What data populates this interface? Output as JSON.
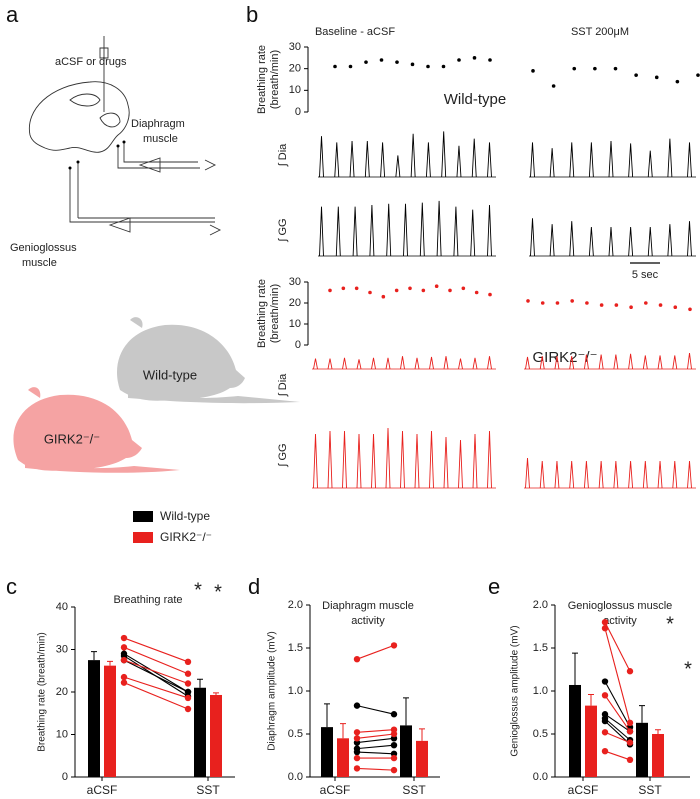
{
  "panels": {
    "a": {
      "label": "a",
      "drug": "aCSF or drugs",
      "diaphragm": [
        "Diaphragm",
        "muscle"
      ],
      "genioglossus": [
        "Genioglossus",
        "muscle"
      ],
      "mouse_wt": "Wild-type",
      "mouse_ko": "GIRK2⁻/⁻"
    },
    "b": {
      "label": "b",
      "headers": [
        "Baseline - aCSF",
        "SST 200μM"
      ],
      "scale_bar": "5 sec"
    },
    "c": {
      "label": "c"
    },
    "d": {
      "label": "d"
    },
    "e": {
      "label": "e"
    },
    "legend": [
      {
        "name": "Wild-type",
        "color": "#000000"
      },
      {
        "name": "GIRK2⁻/⁻",
        "color": "#e8211e"
      }
    ]
  },
  "chart_data": [
    {
      "type": "scatter",
      "ylabel": [
        "Breathing rate",
        "(breath/min)"
      ],
      "annotation": "Wild-type",
      "annotation_color": "#000000",
      "ylim": [
        0,
        30
      ],
      "yticks": [
        0,
        10,
        20,
        30
      ],
      "series": [
        {
          "color": "#000000",
          "values": [
            21,
            21,
            23,
            24,
            23,
            22,
            21,
            21,
            24,
            25,
            24
          ]
        },
        {
          "color": "#000000",
          "values": [
            19,
            12,
            20,
            20,
            20,
            17,
            16,
            14,
            17
          ]
        }
      ]
    },
    {
      "type": "trace",
      "label": "∫ Dia",
      "ylim": [
        0,
        1
      ],
      "series": [
        {
          "color": "#000000",
          "values": [
            0.85,
            0.72,
            0.75,
            0.75,
            0.72,
            0.45,
            0.9,
            0.72,
            0.95,
            0.65,
            0.8,
            0.72
          ]
        },
        {
          "color": "#000000",
          "values": [
            0.72,
            0.6,
            0.72,
            0.72,
            0.75,
            0.7,
            0.55,
            0.8,
            0.72
          ]
        }
      ]
    },
    {
      "type": "trace",
      "label": "∫ GG",
      "ylim": [
        0,
        1
      ],
      "series": [
        {
          "color": "#000000",
          "values": [
            0.85,
            0.85,
            0.85,
            0.88,
            0.9,
            0.9,
            0.92,
            0.95,
            0.85,
            0.8,
            0.88
          ]
        },
        {
          "color": "#000000",
          "values": [
            0.65,
            0.55,
            0.6,
            0.5,
            0.5,
            0.5,
            0.5,
            0.55,
            0.6
          ]
        }
      ]
    },
    {
      "type": "scatter",
      "ylabel": [
        "Breathing rate",
        "(breath/min)"
      ],
      "annotation": "GIRK2⁻/⁻",
      "annotation_color": "#e8211e",
      "ylim": [
        0,
        30
      ],
      "yticks": [
        0,
        10,
        20,
        30
      ],
      "series": [
        {
          "color": "#e8211e",
          "values": [
            26,
            27,
            27,
            25,
            23,
            26,
            27,
            26,
            28,
            26,
            27,
            25,
            24
          ]
        },
        {
          "color": "#e8211e",
          "values": [
            21,
            20,
            20,
            21,
            20,
            19,
            19,
            18,
            20,
            19,
            18,
            17
          ]
        }
      ]
    },
    {
      "type": "trace",
      "label": "∫ Dia",
      "ylim": [
        0,
        1
      ],
      "series": [
        {
          "color": "#e8211e",
          "values": [
            0.65,
            0.65,
            0.7,
            0.6,
            0.7,
            0.7,
            0.8,
            0.7,
            0.75,
            0.8,
            0.65,
            0.7,
            0.8
          ]
        },
        {
          "color": "#e8211e",
          "values": [
            0.75,
            0.8,
            0.8,
            0.8,
            0.9,
            0.9,
            0.9,
            0.95,
            0.85,
            0.85,
            0.85,
            1.0
          ]
        }
      ]
    },
    {
      "type": "trace",
      "label": "∫ GG",
      "ylim": [
        0,
        1
      ],
      "series": [
        {
          "color": "#e8211e",
          "values": [
            0.9,
            0.95,
            0.95,
            0.9,
            0.9,
            1.0,
            0.95,
            0.9,
            0.95,
            0.85,
            0.8,
            0.9,
            0.95
          ]
        },
        {
          "color": "#e8211e",
          "values": [
            0.5,
            0.45,
            0.45,
            0.45,
            0.45,
            0.45,
            0.45,
            0.45,
            0.45,
            0.45,
            0.45,
            0.45
          ]
        }
      ]
    },
    {
      "type": "bar",
      "title": [
        "Breathing rate"
      ],
      "ylabel": "Breathing rate (breath/min)",
      "categories": [
        "aCSF",
        "SST"
      ],
      "ylim": [
        0,
        40
      ],
      "yticks": [
        0,
        10,
        20,
        30,
        40
      ],
      "annotations": [
        "*",
        "*"
      ],
      "series": [
        {
          "color": "#000000",
          "values": [
            27.5,
            21
          ],
          "errors": [
            2,
            2
          ],
          "individuals": [
            [
              29,
              20
            ],
            [
              28.5,
              19
            ],
            [
              27.5,
              20
            ]
          ]
        },
        {
          "color": "#e8211e",
          "values": [
            26.2,
            19.3
          ],
          "errors": [
            1,
            0.5
          ],
          "individuals": [
            [
              32.7,
              27.1
            ],
            [
              30.5,
              24.3
            ],
            [
              27.5,
              22
            ],
            [
              23.5,
              18.6
            ],
            [
              22.2,
              16
            ]
          ]
        }
      ]
    },
    {
      "type": "bar",
      "title": [
        "Diaphragm muscle",
        "activity"
      ],
      "ylabel": "Diaphragm amplitude (mV)",
      "categories": [
        "aCSF",
        "SST"
      ],
      "ylim": [
        0,
        2
      ],
      "yticks": [
        {
          "value": 0,
          "label": "0.0"
        },
        0.5,
        {
          "value": 1,
          "label": "1.0"
        },
        1.5,
        {
          "value": 2,
          "label": "2.0"
        }
      ],
      "annotations": [],
      "series": [
        {
          "color": "#000000",
          "values": [
            0.58,
            0.6
          ],
          "errors": [
            0.27,
            0.32
          ],
          "individuals": [
            [
              0.83,
              0.73
            ],
            [
              0.4,
              0.45
            ],
            [
              0.33,
              0.37
            ],
            [
              0.29,
              0.27
            ]
          ]
        },
        {
          "color": "#e8211e",
          "values": [
            0.45,
            0.42
          ],
          "errors": [
            0.17,
            0.14
          ],
          "individuals": [
            [
              1.37,
              1.53
            ],
            [
              0.52,
              0.55
            ],
            [
              0.45,
              0.5
            ],
            [
              0.22,
              0.22
            ],
            [
              0.1,
              0.08
            ]
          ]
        }
      ]
    },
    {
      "type": "bar",
      "title": [
        "Genioglossus muscle",
        "activity"
      ],
      "ylabel": "Genioglossus amplitude (mV)",
      "categories": [
        "aCSF",
        "SST"
      ],
      "ylim": [
        0,
        2
      ],
      "yticks": [
        {
          "value": 0,
          "label": "0.0"
        },
        0.5,
        {
          "value": 1,
          "label": "1.0"
        },
        1.5,
        {
          "value": 2,
          "label": "2.0"
        }
      ],
      "annotations": [
        "*",
        "*"
      ],
      "series": [
        {
          "color": "#000000",
          "values": [
            1.07,
            0.63
          ],
          "errors": [
            0.37,
            0.2
          ],
          "individuals": [
            [
              1.11,
              0.58
            ],
            [
              0.73,
              0.53
            ],
            [
              0.68,
              0.43
            ],
            [
              0.65,
              0.38
            ]
          ]
        },
        {
          "color": "#e8211e",
          "values": [
            0.83,
            0.5
          ],
          "errors": [
            0.13,
            0.05
          ],
          "individuals": [
            [
              1.8,
              1.23
            ],
            [
              1.73,
              0.63
            ],
            [
              0.95,
              0.53
            ],
            [
              0.52,
              0.4
            ],
            [
              0.3,
              0.2
            ]
          ]
        }
      ]
    }
  ]
}
